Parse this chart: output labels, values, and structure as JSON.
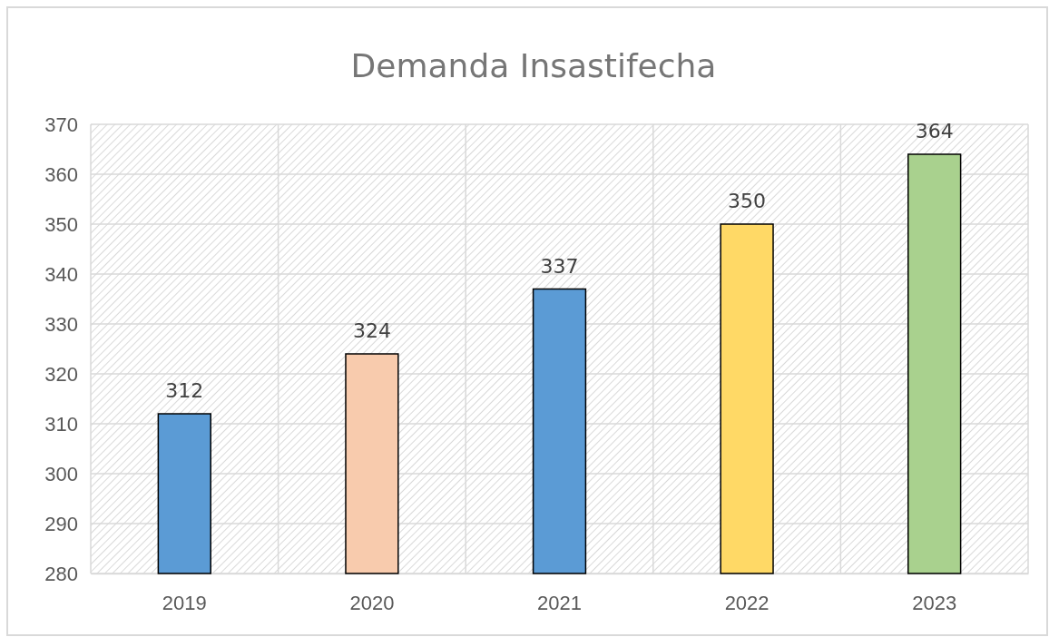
{
  "chart_data": {
    "type": "bar",
    "title": "Demanda Insastifecha",
    "categories": [
      "2019",
      "2020",
      "2021",
      "2022",
      "2023"
    ],
    "values": [
      312,
      324,
      337,
      350,
      364
    ],
    "colors": [
      "#5b9bd5",
      "#f8cbad",
      "#5b9bd5",
      "#ffd966",
      "#a9d18e"
    ],
    "ylim": [
      280,
      370
    ],
    "yticks": [
      280,
      290,
      300,
      310,
      320,
      330,
      340,
      350,
      360,
      370
    ],
    "grid": true,
    "data_labels": true
  }
}
